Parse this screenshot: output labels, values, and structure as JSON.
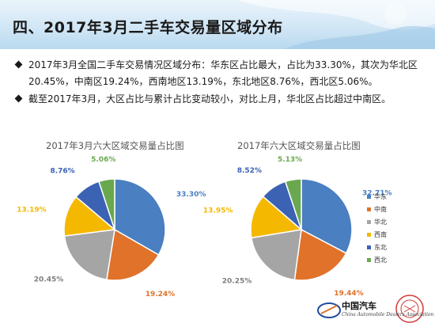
{
  "header": {
    "title": "四、2017年3月二手车交易量区域分布"
  },
  "bullets": [
    "2017年3月全国二手车交易情况区域分布：华东区占比最大，占比为33.30%，其次为华北区20.45%，中南区19.24%，西南地区13.19%，东北地区8.76%，西北区5.06%。",
    "截至2017年3月，大区占比与累计占比变动较小，对比上月，华北区占比超过中南区。"
  ],
  "colors": {
    "华东": "#4a7fc1",
    "中南": "#e0722a",
    "华北": "#a5a5a5",
    "西南": "#f5b800",
    "东北": "#3b62b3",
    "西北": "#6aa84f"
  },
  "chart_data": [
    {
      "type": "pie",
      "title": "2017年3月六大区域交易量占比图",
      "categories": [
        "华东",
        "中南",
        "华北",
        "西南",
        "东北",
        "西北"
      ],
      "values": [
        33.3,
        19.24,
        20.45,
        13.19,
        8.76,
        5.06
      ],
      "labels": [
        "33.30%",
        "19.24%",
        "20.45%",
        "13.19%",
        "8.76%",
        "5.06%"
      ]
    },
    {
      "type": "pie",
      "title": "2017年六大区域交易量占比图",
      "categories": [
        "华东",
        "中南",
        "华北",
        "西南",
        "东北",
        "西北"
      ],
      "values": [
        32.71,
        19.44,
        20.25,
        13.95,
        8.52,
        5.13
      ],
      "labels": [
        "32.71%",
        "19.44%",
        "20.25%",
        "13.95%",
        "8.52%",
        "5.13%"
      ],
      "legend": [
        "华东",
        "中南",
        "华北",
        "西南",
        "东北",
        "西北"
      ],
      "legend_position": "right"
    }
  ],
  "logo": {
    "name": "中国汽车",
    "subtitle": "China Automobile Dealers Association"
  }
}
